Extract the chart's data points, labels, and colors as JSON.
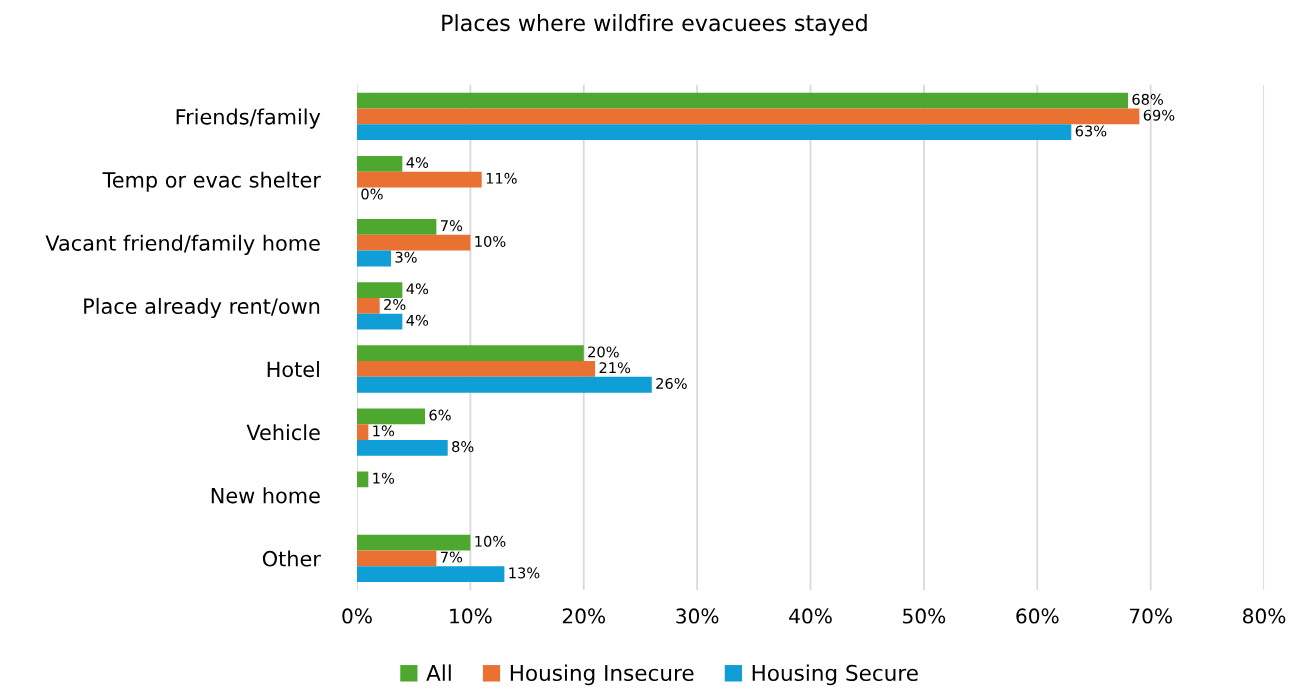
{
  "chart_data": {
    "type": "bar",
    "orientation": "horizontal",
    "title": "Places where wildfire evacuees stayed",
    "categories": [
      "Friends/family",
      "Temp or evac shelter",
      "Vacant friend/family home",
      "Place already rent/own",
      "Hotel",
      "Vehicle",
      "New home",
      "Other"
    ],
    "series": [
      {
        "name": "All",
        "color": "#4ea72e",
        "values": [
          68,
          4,
          7,
          4,
          20,
          6,
          1,
          10
        ],
        "value_labels": [
          "68%",
          "4%",
          "7%",
          "4%",
          "20%",
          "6%",
          "1%",
          "10%"
        ]
      },
      {
        "name": "Housing Insecure",
        "color": "#e97132",
        "values": [
          69,
          11,
          10,
          2,
          21,
          1,
          null,
          7
        ],
        "value_labels": [
          "69%",
          "11%",
          "10%",
          "2%",
          "21%",
          "1%",
          null,
          "7%"
        ]
      },
      {
        "name": "Housing Secure",
        "color": "#0f9ed5",
        "values": [
          63,
          0,
          3,
          4,
          26,
          8,
          null,
          13
        ],
        "value_labels": [
          "63%",
          "0%",
          "3%",
          "4%",
          "26%",
          "8%",
          null,
          "13%"
        ]
      }
    ],
    "xlim": [
      0,
      80
    ],
    "xticks": [
      {
        "value": 0,
        "label": "0%"
      },
      {
        "value": 10,
        "label": "10%"
      },
      {
        "value": 20,
        "label": "20%"
      },
      {
        "value": 30,
        "label": "30%"
      },
      {
        "value": 40,
        "label": "40%"
      },
      {
        "value": 50,
        "label": "50%"
      },
      {
        "value": 60,
        "label": "60%"
      },
      {
        "value": 70,
        "label": "70%"
      },
      {
        "value": 80,
        "label": "80%"
      }
    ],
    "grid": "x",
    "legend": "bottom"
  }
}
